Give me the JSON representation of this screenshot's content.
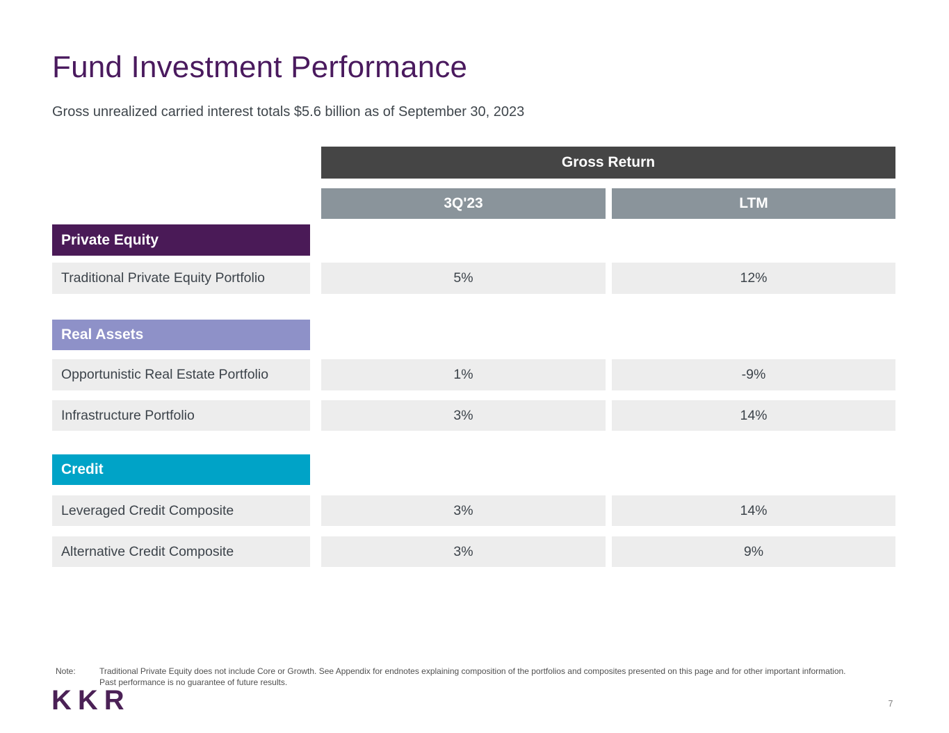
{
  "slide": {
    "title": "Fund Investment Performance",
    "subtitle": "Gross unrealized carried interest totals $5.6 billion as of September 30, 2023",
    "page_number": "7",
    "logo_text": "KKR"
  },
  "table": {
    "group_header": "Gross Return",
    "columns": [
      "3Q'23",
      "LTM"
    ],
    "sections": [
      {
        "label": "Private Equity",
        "color": "#4A1A57",
        "rows": [
          {
            "label": "Traditional Private Equity Portfolio",
            "q3_23": "5%",
            "ltm": "12%"
          }
        ]
      },
      {
        "label": "Real Assets",
        "color": "#8E91C8",
        "rows": [
          {
            "label": "Opportunistic Real Estate Portfolio",
            "q3_23": "1%",
            "ltm": "-9%"
          },
          {
            "label": "Infrastructure Portfolio",
            "q3_23": "3%",
            "ltm": "14%"
          }
        ]
      },
      {
        "label": "Credit",
        "color": "#00A3C7",
        "rows": [
          {
            "label": "Leveraged Credit Composite",
            "q3_23": "3%",
            "ltm": "14%"
          },
          {
            "label": "Alternative Credit Composite",
            "q3_23": "3%",
            "ltm": "9%"
          }
        ]
      }
    ]
  },
  "footer": {
    "note_label": "Note:",
    "note_lines": [
      "Traditional Private Equity does not include Core or Growth. See Appendix for endnotes explaining composition of the portfolios and composites presented on this page and for other important information.",
      "Past performance is no guarantee of future results."
    ]
  },
  "colors": {
    "title_text": "#4A1A5E",
    "group_header_bg": "#454545",
    "column_header_bg": "#8A949B",
    "private_equity_bg": "#4A1A57",
    "real_assets_bg": "#8E91C8",
    "credit_bg": "#00A3C7",
    "row_bg": "#EDEDED",
    "body_text": "#3C434A",
    "logo_text": "#4B2156"
  }
}
